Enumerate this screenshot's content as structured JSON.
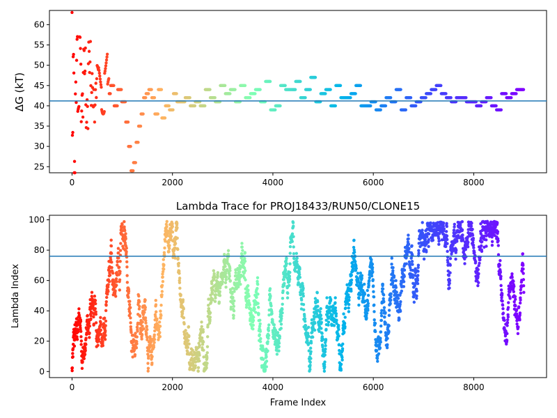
{
  "chart_data": [
    {
      "type": "scatter",
      "title": "",
      "xlabel": "",
      "ylabel": "ΔG (kT)",
      "xlim": [
        -450,
        9450
      ],
      "ylim": [
        23.5,
        63.5
      ],
      "xticks": [
        0,
        2000,
        4000,
        6000,
        8000
      ],
      "yticks": [
        25,
        30,
        35,
        40,
        45,
        50,
        55,
        60
      ],
      "hline": 41.2,
      "colormap": "rainbow (reversed)",
      "colormap_stops": [
        "#ff0000",
        "#ffb360",
        "#80ffb4",
        "#00b4eb",
        "#3f44fb",
        "#8000ff"
      ],
      "series": [
        {
          "x": [
            0,
            15,
            30,
            50,
            75,
            100,
            130,
            160,
            200,
            250,
            300,
            350,
            400,
            450,
            500,
            560,
            620,
            680,
            740,
            800,
            870,
            950,
            1030,
            1100,
            1150,
            1200,
            1250,
            1300,
            1350,
            1400,
            1450,
            1500,
            1560,
            1620,
            1680,
            1750,
            1820,
            1900,
            1980,
            2050,
            2130,
            2200,
            2300,
            2400,
            2500,
            2600,
            2700,
            2800,
            2900,
            3000,
            3100,
            3200,
            3300,
            3400,
            3500,
            3600,
            3700,
            3800,
            3900,
            4000,
            4100,
            4200,
            4300,
            4400,
            4500,
            4600,
            4700,
            4800,
            4900,
            5000,
            5100,
            5200,
            5300,
            5400,
            5500,
            5600,
            5700,
            5800,
            5900,
            6000,
            6100,
            6200,
            6300,
            6400,
            6500,
            6600,
            6700,
            6800,
            6900,
            7000,
            7100,
            7200,
            7300,
            7400,
            7500,
            7600,
            7700,
            7800,
            7900,
            8000,
            8100,
            8200,
            8300,
            8400,
            8500,
            8600,
            8700,
            8800,
            8900,
            9000
          ],
          "y": [
            63,
            32,
            50,
            27,
            42,
            55,
            36,
            53,
            40,
            51,
            38,
            52,
            44,
            40,
            46,
            47,
            42,
            51,
            43,
            45,
            40,
            44,
            41,
            36,
            30,
            24,
            26,
            31,
            35,
            38,
            42,
            43,
            44,
            42,
            38,
            44,
            37,
            40,
            39,
            43,
            41,
            41,
            42,
            40,
            41,
            40,
            44,
            42,
            41,
            45,
            43,
            44,
            41,
            45,
            42,
            43,
            44,
            41,
            46,
            39,
            40,
            45,
            44,
            44,
            46,
            42,
            44,
            47,
            41,
            43,
            44,
            40,
            45,
            42,
            42,
            43,
            45,
            40,
            40,
            41,
            39,
            40,
            42,
            41,
            44,
            39,
            42,
            40,
            41,
            42,
            43,
            44,
            45,
            43,
            42,
            41,
            42,
            42,
            41,
            41,
            40,
            41,
            42,
            40,
            39,
            43,
            42,
            43,
            44,
            44
          ]
        }
      ]
    },
    {
      "type": "scatter",
      "title": "Lambda Trace for PROJ18433/RUN50/CLONE15",
      "xlabel": "Frame Index",
      "ylabel": "Lambda Index",
      "xlim": [
        -450,
        9450
      ],
      "ylim": [
        -4,
        103
      ],
      "xticks": [
        0,
        2000,
        4000,
        6000,
        8000
      ],
      "yticks": [
        0,
        20,
        40,
        60,
        80,
        100
      ],
      "hline": 76,
      "colormap": "rainbow (reversed)",
      "point_count_approx": 9000,
      "value_range": [
        0,
        99
      ],
      "note": "dense random-walk of lambda index over frames"
    }
  ]
}
